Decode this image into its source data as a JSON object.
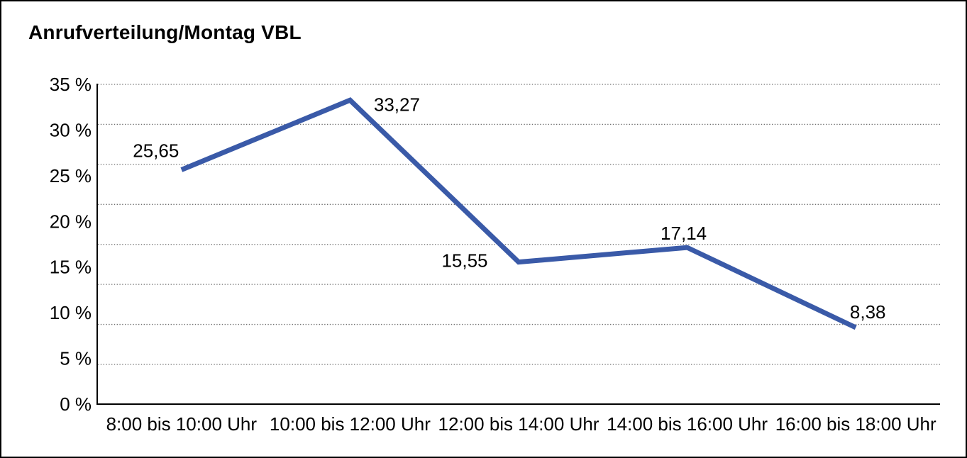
{
  "chart_data": {
    "type": "line",
    "title": "Anrufverteilung/Montag VBL",
    "categories": [
      "8:00 bis 10:00 Uhr",
      "10:00 bis 12:00 Uhr",
      "12:00 bis 14:00 Uhr",
      "14:00 bis 16:00 Uhr",
      "16:00 bis 18:00 Uhr"
    ],
    "values": [
      25.65,
      33.27,
      15.55,
      17.14,
      8.38
    ],
    "point_labels": [
      "25,65",
      "33,27",
      "15,55",
      "17,14",
      "8,38"
    ],
    "y_ticks": [
      {
        "value": 35,
        "label": "35 %"
      },
      {
        "value": 30,
        "label": "30 %"
      },
      {
        "value": 25,
        "label": "25 %"
      },
      {
        "value": 20,
        "label": "20 %"
      },
      {
        "value": 15,
        "label": "15 %"
      },
      {
        "value": 10,
        "label": "10 %"
      },
      {
        "value": 5,
        "label": "5 %"
      },
      {
        "value": 0,
        "label": "0 %"
      }
    ],
    "ylim": [
      0,
      35
    ],
    "xlabel": "",
    "ylabel": "",
    "legend": "none",
    "grid": "horizontal-dotted",
    "gridline_count": 8,
    "line_color": "#3A5AA8",
    "gridline_color": "#707070",
    "axis_color": "#000000",
    "text_color": "#000000",
    "background_color": "#FFFFFF",
    "frame_border_color": "#000000"
  }
}
